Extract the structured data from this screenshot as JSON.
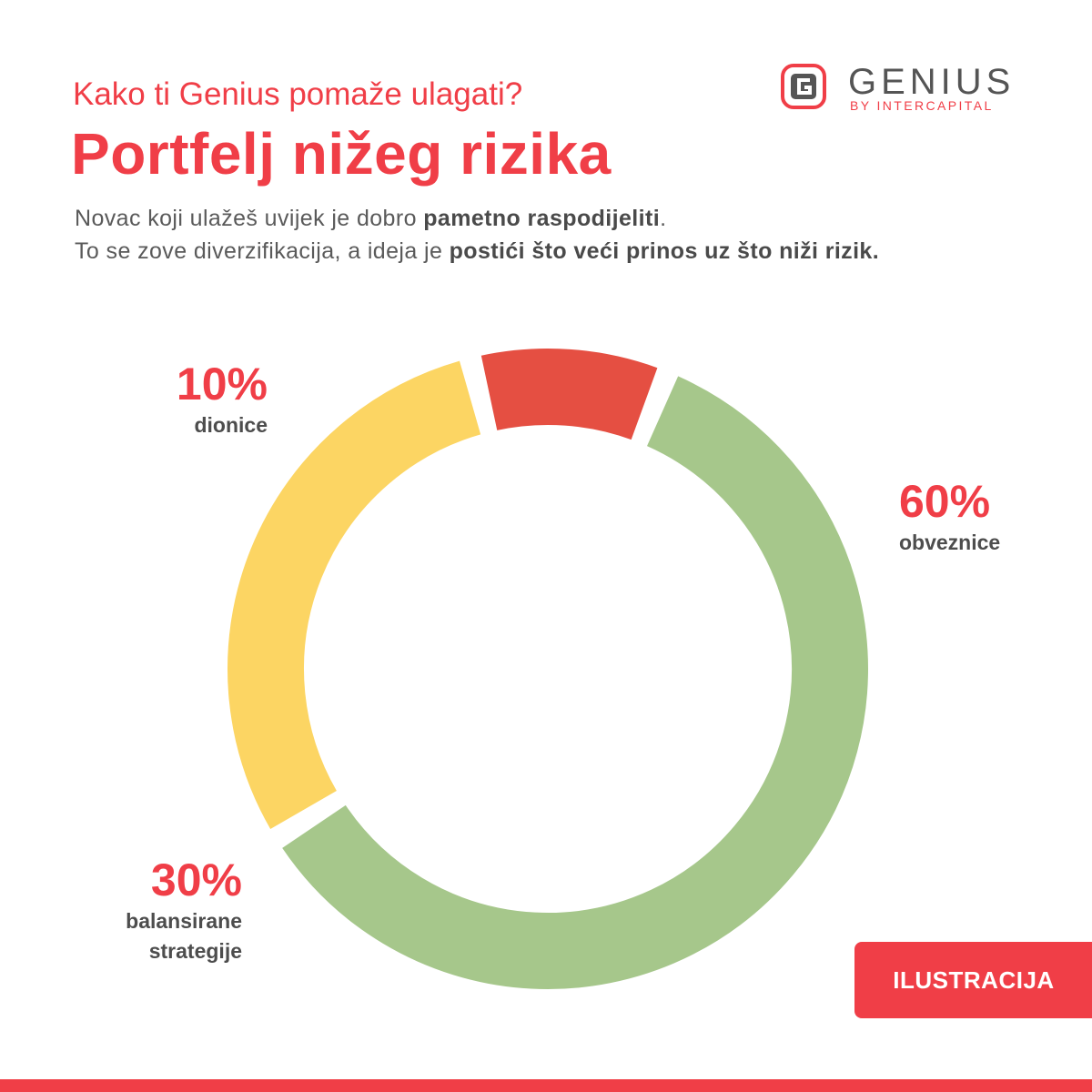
{
  "header": {
    "subtitle": "Kako ti Genius pomaže ulagati?",
    "title": "Portfelj nižeg rizika"
  },
  "intro": {
    "line1_plain": "Novac koji ulažeš uvijek je dobro ",
    "line1_bold": "pametno raspodijeliti",
    "line1_end": ".",
    "line2_plain": "To se zove diverzifikacija, a ideja je ",
    "line2_bold": "postići što veći prinos uz što niži rizik."
  },
  "logo": {
    "word": "GENIUS",
    "tagline": "BY INTERCAPITAL",
    "icon": "genius-g-icon"
  },
  "chart_data": {
    "type": "pie",
    "variant": "donut",
    "slices": [
      {
        "name": "obveznice",
        "value": 60,
        "label": "60%",
        "color": "#a6c78b"
      },
      {
        "name": "balansirane strategije",
        "value": 30,
        "label": "30%",
        "color": "#fcd563"
      },
      {
        "name": "dionice",
        "value": 10,
        "label": "10%",
        "color": "#e54f42"
      }
    ]
  },
  "labels": {
    "obveznice": {
      "pct": "60%",
      "name": "obveznice"
    },
    "balansirane": {
      "pct": "30%",
      "name_line1": "balansirane",
      "name_line2": "strategije"
    },
    "dionice": {
      "pct": "10%",
      "name": "dionice"
    }
  },
  "badge": {
    "text": "ILUSTRACIJA"
  },
  "colors": {
    "accent": "#f03e47"
  }
}
